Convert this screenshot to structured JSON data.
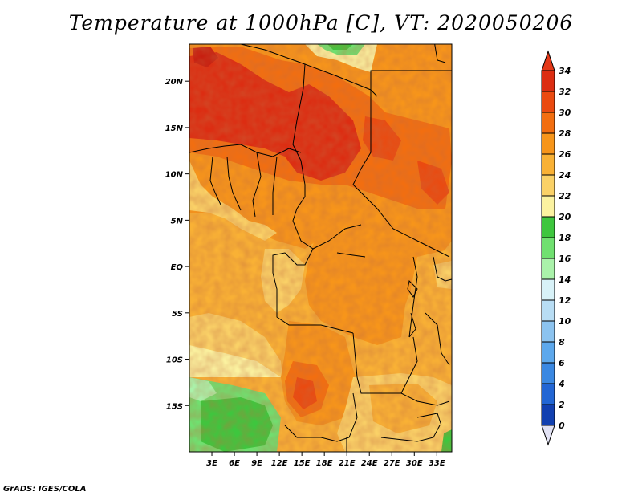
{
  "title": "Temperature at 1000hPa [C], VT: 2020050206",
  "footer": "GrADS: IGES/COLA",
  "map": {
    "variable": "Temperature",
    "level": "1000hPa",
    "units": "C",
    "valid_time": "2020050206",
    "lon_range": [
      0,
      35
    ],
    "lat_range": [
      -20,
      24
    ],
    "lon_ticks": [
      "3E",
      "6E",
      "9E",
      "12E",
      "15E",
      "18E",
      "21E",
      "24E",
      "27E",
      "30E",
      "33E"
    ],
    "lon_tick_values": [
      3,
      6,
      9,
      12,
      15,
      18,
      21,
      24,
      27,
      30,
      33
    ],
    "lat_ticks": [
      "20N",
      "15N",
      "10N",
      "5N",
      "EQ",
      "5S",
      "10S",
      "15S"
    ],
    "lat_tick_values": [
      20,
      15,
      10,
      5,
      0,
      -5,
      -10,
      -15
    ]
  },
  "colorbar": {
    "labels": [
      "34",
      "32",
      "30",
      "28",
      "26",
      "24",
      "22",
      "20",
      "18",
      "16",
      "14",
      "12",
      "10",
      "8",
      "6",
      "4",
      "2",
      "0"
    ],
    "colors": [
      "#dc2d12",
      "#ea4a10",
      "#f26e10",
      "#f7951a",
      "#f9b135",
      "#fad167",
      "#fbf2a0",
      "#3ec63e",
      "#70e070",
      "#aaf2aa",
      "#d8f2f8",
      "#b8ddf4",
      "#8cc3ef",
      "#5da8ec",
      "#3a88e2",
      "#2266d4",
      "#1240b0",
      "#0a1f80"
    ],
    "top_arrow_color": "#e43818",
    "bottom_arrow_color": "#e2e2f4"
  }
}
